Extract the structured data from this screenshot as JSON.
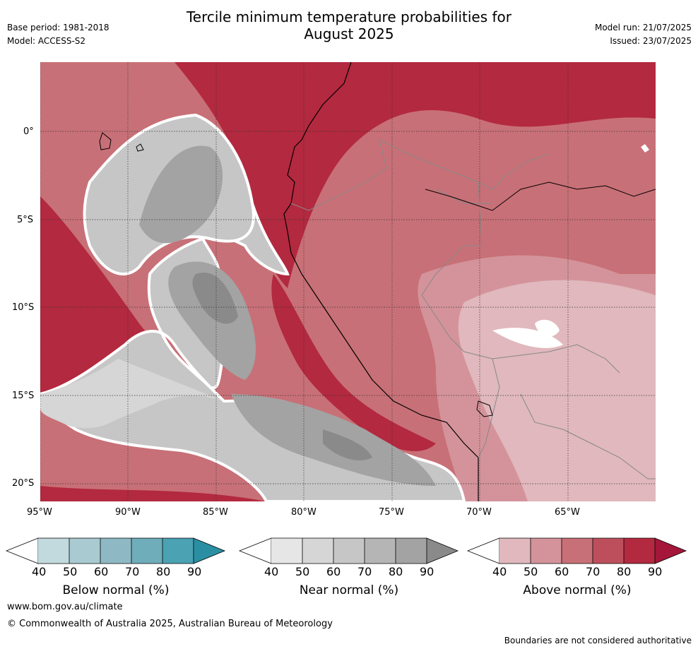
{
  "header": {
    "title_line1": "Tercile minimum temperature probabilities for",
    "title_line2": "August 2025",
    "base_period": "Base period: 1981-2018",
    "model": "Model: ACCESS-S2",
    "model_run": "Model run: 21/07/2025",
    "issued": "Issued: 23/07/2025"
  },
  "map": {
    "region": "Peru and surrounding Pacific",
    "lat_labels": [
      "0°",
      "5°S",
      "10°S",
      "15°S",
      "20°S"
    ],
    "lon_labels": [
      "95°W",
      "90°W",
      "85°W",
      "80°W",
      "75°W",
      "70°W",
      "65°W"
    ],
    "lat_range": [
      -21,
      4
    ],
    "lon_range": [
      -95,
      -60
    ],
    "grid": true,
    "colors": {
      "above": [
        "#e0b8bd",
        "#d4939b",
        "#c87077",
        "#bd4f5d",
        "#b3293f",
        "#a5173a"
      ],
      "near": [
        "#e6e6e6",
        "#d6d6d6",
        "#c6c6c6",
        "#b5b5b5",
        "#a3a3a3",
        "#8a8a8a"
      ],
      "below": [
        "#c2d9de",
        "#a9cad1",
        "#8eb9c4",
        "#6eadb9",
        "#4aa2b2",
        "#2b8fa3"
      ]
    }
  },
  "colorbars": {
    "ticks": [
      "40",
      "50",
      "60",
      "70",
      "80",
      "90"
    ],
    "below_label": "Below normal (%)",
    "near_label": "Near normal (%)",
    "above_label": "Above normal (%)"
  },
  "footer": {
    "url": "www.bom.gov.au/climate",
    "copyright": "© Commonwealth of Australia 2025, Australian Bureau of Meteorology",
    "disclaimer": "Boundaries are not considered authoritative"
  }
}
